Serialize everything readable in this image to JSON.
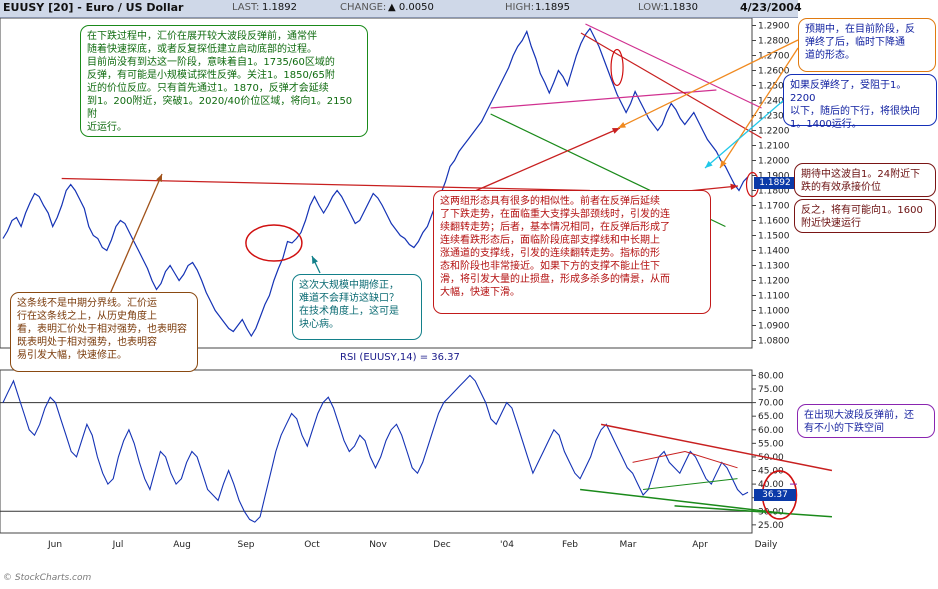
{
  "header": {
    "title": "EUUSY [20] - Euro / US Dollar",
    "last_label": "LAST:",
    "last_value": "1.1892",
    "change_label": "CHANGE:",
    "change_value": "▲ 0.0050",
    "high_label": "HIGH:",
    "high_value": "1.1895",
    "low_label": "LOW:",
    "low_value": "1.1830",
    "date": "4/23/2004"
  },
  "price_tag": "1.1892",
  "rsi_tag": "36.37",
  "rsi_label": "RSI (EUUSY,14) = 36.37",
  "logo": "© StockCharts.com",
  "notes": {
    "green": "在下跌过程中，汇价在展开较大波段反弹前，通常伴\n随着快速探底，或者反复探低建立启动底部的过程。\n目前尚没有到达这一阶段，意味着自1。1735/60区域的\n反弹，有可能是小规模试探性反弹。关注1。1850/65附\n近的价位反应。只有首先通过1。1870，反弹才会延续\n到1。200附近，突破1。2020/40价位区域，将向1。2150附\n近运行。",
    "brown": "这条线不是中期分界线。汇价运\n行在这条线之上，从历史角度上\n看，表明汇价处于相对强势，也表明容\n既表明处于相对强势，也表明容\n易引发大幅，快速修正。",
    "teal": "这次大规模中期修正，\n难道不会拜访这缺口？\n在技术角度上，这可是\n块心病。",
    "red": "这两组形态具有很多的相似性。前者在反弹后延续\n了下跌走势，在面临重大支撑头部颈线时，引发的连\n续翻转走势；后者，基本情况相同，在反弹后形成了\n连续看跌形态后，面临阶段底部支撑线和中长期上\n涨通道的支撑线，引发的连续翻转走势。指标的形\n态和阶段也非常接近。如果下方的支撑不能止住下\n滑，将引发大量的止损盘，形成多杀多的情景，从而\n大幅，快速下滑。",
    "orange": "预期中，在目前阶段，反\n弹终了后，临时下降通\n道的形态。",
    "blue": "如果反弹终了，受阻于1。2200\n以下，随后的下行，将很快向\n1。1400运行。",
    "maroon1": "期待中这波自1。24附近下\n跌的有效承接价位",
    "maroon2": "反之，将有可能向1。1600\n附近快速运行",
    "purple": "在出现大波段反弹前，还\n有不小的下跌空间"
  },
  "colors": {
    "price_line": "#1533b5",
    "rsi_line": "#1533b5",
    "trend_red": "#c82020",
    "trend_green": "#1a8a1a",
    "trend_magenta": "#d03090",
    "arrow_orange": "#f08a20",
    "arrow_cyan": "#20c8e8",
    "arrow_brown": "#a0521a"
  },
  "chart_data": [
    {
      "type": "bar",
      "title": "EUUSY [20] - Euro / US Dollar",
      "ylim": [
        1.075,
        1.295
      ],
      "y_ticks": [
        "1.0800",
        "1.0900",
        "1.1000",
        "1.1100",
        "1.1200",
        "1.1300",
        "1.1400",
        "1.1500",
        "1.1600",
        "1.1700",
        "1.1800",
        "1.1900",
        "1.2000",
        "1.2100",
        "1.2200",
        "1.2300",
        "1.2400",
        "1.2500",
        "1.2600",
        "1.2700",
        "1.2800",
        "1.2900"
      ],
      "x_ticks": [
        "Jun",
        "Jul",
        "Aug",
        "Sep",
        "Oct",
        "Nov",
        "Dec",
        "'04",
        "Feb",
        "Mar",
        "Apr",
        "Daily"
      ],
      "grid": false,
      "series": [
        {
          "name": "EUUSY",
          "values": [
            1.148,
            1.153,
            1.16,
            1.162,
            1.156,
            1.165,
            1.172,
            1.178,
            1.176,
            1.17,
            1.165,
            1.156,
            1.162,
            1.17,
            1.18,
            1.184,
            1.18,
            1.174,
            1.168,
            1.156,
            1.15,
            1.148,
            1.142,
            1.14,
            1.147,
            1.156,
            1.16,
            1.158,
            1.152,
            1.146,
            1.14,
            1.134,
            1.128,
            1.12,
            1.114,
            1.118,
            1.126,
            1.13,
            1.125,
            1.12,
            1.124,
            1.13,
            1.132,
            1.127,
            1.12,
            1.112,
            1.106,
            1.1,
            1.096,
            1.092,
            1.088,
            1.086,
            1.09,
            1.094,
            1.088,
            1.083,
            1.088,
            1.096,
            1.104,
            1.11,
            1.12,
            1.128,
            1.135,
            1.146,
            1.145,
            1.148,
            1.152,
            1.16,
            1.17,
            1.176,
            1.17,
            1.165,
            1.17,
            1.176,
            1.18,
            1.176,
            1.17,
            1.164,
            1.158,
            1.16,
            1.166,
            1.172,
            1.178,
            1.175,
            1.17,
            1.164,
            1.158,
            1.154,
            1.15,
            1.148,
            1.144,
            1.142,
            1.146,
            1.152,
            1.156,
            1.164,
            1.172,
            1.178,
            1.186,
            1.196,
            1.2,
            1.206,
            1.21,
            1.214,
            1.218,
            1.222,
            1.226,
            1.232,
            1.238,
            1.244,
            1.25,
            1.256,
            1.262,
            1.27,
            1.276,
            1.28,
            1.286,
            1.276,
            1.268,
            1.258,
            1.252,
            1.245,
            1.252,
            1.26,
            1.256,
            1.25,
            1.26,
            1.27,
            1.278,
            1.284,
            1.288,
            1.282,
            1.276,
            1.268,
            1.26,
            1.252,
            1.244,
            1.238,
            1.232,
            1.238,
            1.246,
            1.24,
            1.234,
            1.228,
            1.224,
            1.22,
            1.224,
            1.232,
            1.238,
            1.234,
            1.228,
            1.224,
            1.228,
            1.232,
            1.226,
            1.22,
            1.214,
            1.21,
            1.206,
            1.2,
            1.196,
            1.19,
            1.184,
            1.18,
            1.186,
            1.1892
          ]
        }
      ]
    },
    {
      "type": "line",
      "title": "RSI (EUUSY,14) = 36.37",
      "ylim": [
        22,
        82
      ],
      "y_ticks": [
        "25.00",
        "30.00",
        "35.00",
        "40.00",
        "45.00",
        "50.00",
        "55.00",
        "60.00",
        "65.00",
        "70.00",
        "75.00",
        "80.00"
      ],
      "series": [
        {
          "name": "RSI (EUUSY,14)",
          "values": [
            70,
            74,
            78,
            72,
            66,
            60,
            58,
            62,
            68,
            72,
            70,
            64,
            58,
            52,
            50,
            56,
            62,
            58,
            50,
            44,
            40,
            42,
            50,
            56,
            60,
            55,
            48,
            42,
            38,
            45,
            52,
            50,
            44,
            40,
            42,
            48,
            52,
            50,
            44,
            38,
            36,
            34,
            40,
            45,
            40,
            34,
            30,
            27,
            26,
            28,
            36,
            44,
            52,
            58,
            62,
            66,
            64,
            58,
            54,
            60,
            66,
            70,
            72,
            68,
            62,
            56,
            52,
            54,
            58,
            56,
            50,
            46,
            50,
            56,
            60,
            62,
            58,
            52,
            46,
            44,
            48,
            54,
            60,
            66,
            70,
            72,
            74,
            76,
            78,
            80,
            78,
            74,
            70,
            64,
            62,
            66,
            70,
            68,
            62,
            56,
            50,
            44,
            48,
            52,
            56,
            60,
            58,
            52,
            48,
            44,
            42,
            46,
            50,
            56,
            60,
            62,
            58,
            54,
            50,
            46,
            44,
            40,
            36,
            38,
            44,
            50,
            52,
            48,
            46,
            44,
            48,
            52,
            50,
            46,
            42,
            40,
            44,
            48,
            46,
            42,
            38,
            36,
            37
          ]
        }
      ]
    }
  ]
}
